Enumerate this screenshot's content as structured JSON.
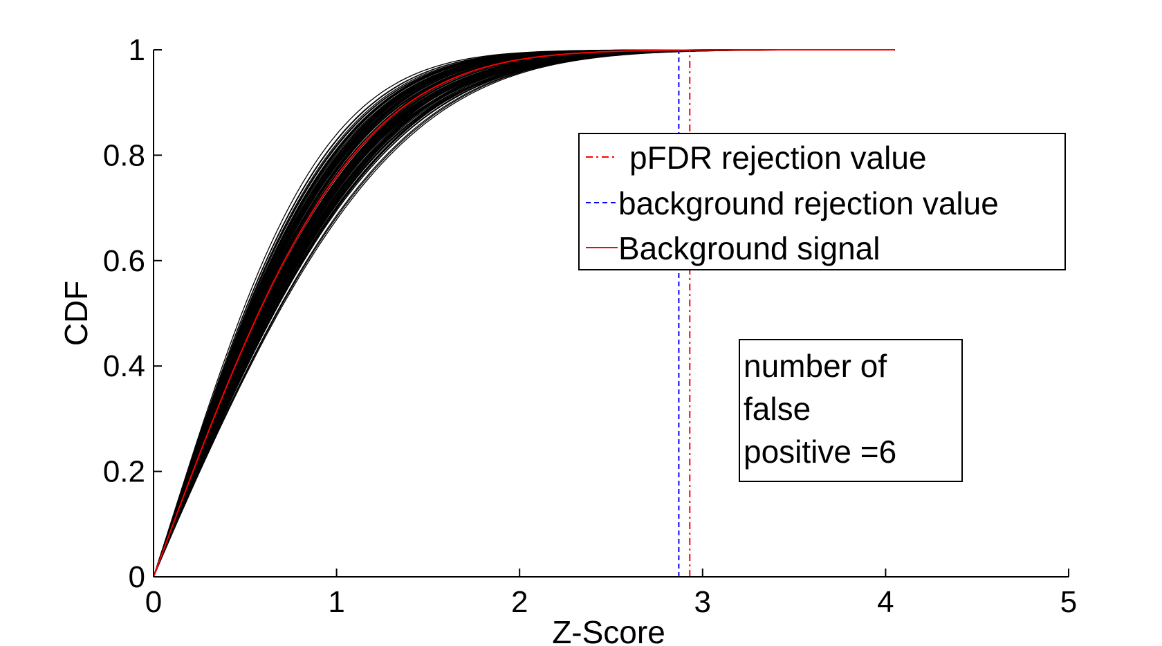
{
  "chart_data": {
    "type": "line",
    "xlabel": "Z-Score",
    "ylabel": "CDF",
    "xlim": [
      0,
      5
    ],
    "ylim": [
      0,
      1
    ],
    "x_ticks": [
      "0",
      "1",
      "2",
      "3",
      "4",
      "5"
    ],
    "y_ticks": [
      "0",
      "0.2",
      "0.4",
      "0.6",
      "0.8",
      "1"
    ],
    "grid": false,
    "legend_position": "center-right",
    "background_curves": {
      "count": 120,
      "color": "#000000",
      "x_max": 4.05,
      "sigma_range": [
        0.74,
        0.98
      ]
    },
    "series": [
      {
        "name": "pFDR rejection value",
        "kind": "vline",
        "x": 2.93,
        "color": "#ff0000",
        "dash": "dashdot"
      },
      {
        "name": "background rejection value",
        "kind": "vline",
        "x": 2.87,
        "color": "#0000ff",
        "dash": "dashed"
      },
      {
        "name": "Background signal",
        "kind": "curve",
        "color": "#ff0000",
        "sigma": 0.85,
        "x": [
          0,
          0.25,
          0.5,
          0.75,
          1.0,
          1.25,
          1.5,
          1.75,
          2.0,
          2.5,
          3.0,
          3.5,
          4.05
        ],
        "y": [
          0,
          0.23,
          0.44,
          0.62,
          0.75,
          0.85,
          0.92,
          0.96,
          0.98,
          0.99,
          1.0,
          1.0,
          1.0
        ]
      }
    ],
    "annotation": {
      "lines": [
        "number of",
        "false",
        "positive =6"
      ]
    }
  }
}
